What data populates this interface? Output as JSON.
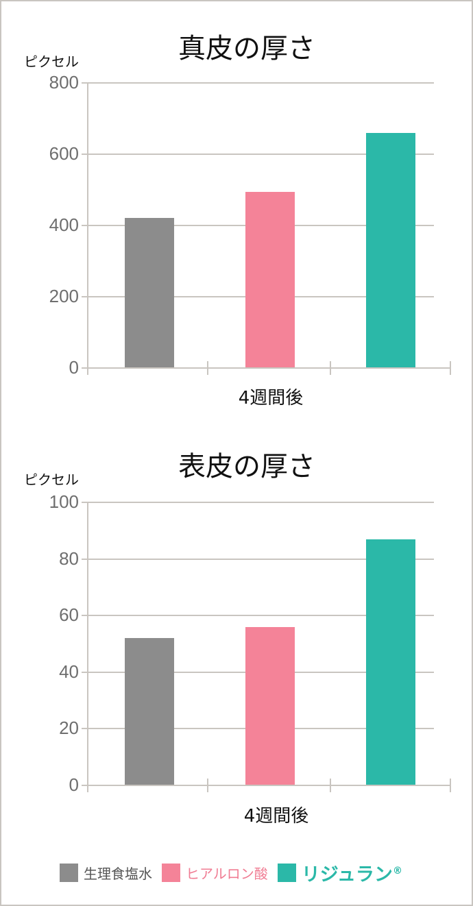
{
  "colors": {
    "saline": "#8c8c8c",
    "hyaluronic": "#f48398",
    "rejuran": "#2bb8a8",
    "grid": "#c9c5c0",
    "tick_text": "#6e6e6e"
  },
  "legend": {
    "items": [
      {
        "label": "生理食塩水",
        "color": "#8c8c8c"
      },
      {
        "label": "ヒアルロン酸",
        "color": "#f48398"
      },
      {
        "label": "リジュラン",
        "sup": "®",
        "color": "#2bb8a8"
      }
    ]
  },
  "chart_data": [
    {
      "type": "bar",
      "title": "真皮の厚さ",
      "ylabel": "ピクセル",
      "xlabel": "",
      "categories": [
        "4週間後"
      ],
      "series": [
        {
          "name": "生理食塩水",
          "values": [
            421
          ]
        },
        {
          "name": "ヒアルロン酸",
          "values": [
            494
          ]
        },
        {
          "name": "リジュラン®",
          "values": [
            660
          ]
        }
      ],
      "ylim": [
        0,
        800
      ],
      "yticks": [
        "0",
        "200",
        "400",
        "600",
        "800"
      ],
      "grid": true,
      "legend_position": "bottom"
    },
    {
      "type": "bar",
      "title": "表皮の厚さ",
      "ylabel": "ピクセル",
      "xlabel": "",
      "categories": [
        "4週間後"
      ],
      "series": [
        {
          "name": "生理食塩水",
          "values": [
            52
          ]
        },
        {
          "name": "ヒアルロン酸",
          "values": [
            56
          ]
        },
        {
          "name": "リジュラン®",
          "values": [
            87
          ]
        }
      ],
      "ylim": [
        0,
        100
      ],
      "yticks": [
        "0",
        "20",
        "40",
        "60",
        "80",
        "100"
      ],
      "grid": true,
      "legend_position": "bottom"
    }
  ]
}
